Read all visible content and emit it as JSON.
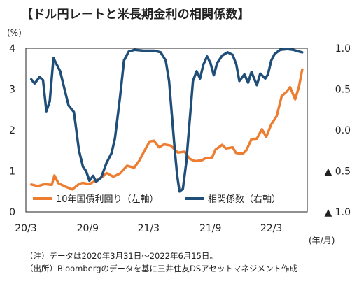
{
  "chart_data": {
    "type": "line",
    "title": "【ドル円レートと米長期金利の相関係数】",
    "left_axis_unit": "(%)",
    "x_axis_unit": "(年/月)",
    "x_ticks": [
      "20/3",
      "20/9",
      "21/3",
      "21/9",
      "22/3"
    ],
    "y_left": {
      "min": 0,
      "max": 4,
      "ticks": [
        "0",
        "1",
        "2",
        "3",
        "4"
      ]
    },
    "y_right": {
      "min": -1.0,
      "max": 1.0,
      "ticks": [
        "▲ 1.0",
        "▲ 0.5",
        "0.0",
        "0.5",
        "1.0"
      ]
    },
    "grid": false,
    "legend_position": "bottom",
    "series": [
      {
        "name": "10年国債利回り（左軸）",
        "axis": "left",
        "color": "#ED7D31",
        "points": [
          [
            "2020-03-31",
            0.67
          ],
          [
            "2020-04-20",
            0.63
          ],
          [
            "2020-05-10",
            0.68
          ],
          [
            "2020-05-31",
            0.66
          ],
          [
            "2020-06-08",
            0.89
          ],
          [
            "2020-06-20",
            0.7
          ],
          [
            "2020-07-10",
            0.62
          ],
          [
            "2020-07-31",
            0.55
          ],
          [
            "2020-08-20",
            0.68
          ],
          [
            "2020-08-31",
            0.71
          ],
          [
            "2020-09-20",
            0.68
          ],
          [
            "2020-10-10",
            0.77
          ],
          [
            "2020-10-31",
            0.87
          ],
          [
            "2020-11-10",
            0.95
          ],
          [
            "2020-11-30",
            0.86
          ],
          [
            "2020-12-20",
            0.94
          ],
          [
            "2021-01-10",
            1.13
          ],
          [
            "2021-01-31",
            1.08
          ],
          [
            "2021-02-15",
            1.25
          ],
          [
            "2021-02-28",
            1.45
          ],
          [
            "2021-03-18",
            1.72
          ],
          [
            "2021-03-31",
            1.74
          ],
          [
            "2021-04-15",
            1.58
          ],
          [
            "2021-04-30",
            1.65
          ],
          [
            "2021-05-20",
            1.62
          ],
          [
            "2021-06-10",
            1.45
          ],
          [
            "2021-06-30",
            1.47
          ],
          [
            "2021-07-15",
            1.3
          ],
          [
            "2021-07-31",
            1.24
          ],
          [
            "2021-08-20",
            1.26
          ],
          [
            "2021-08-31",
            1.31
          ],
          [
            "2021-09-20",
            1.33
          ],
          [
            "2021-09-30",
            1.52
          ],
          [
            "2021-10-20",
            1.64
          ],
          [
            "2021-10-31",
            1.55
          ],
          [
            "2021-11-20",
            1.58
          ],
          [
            "2021-11-30",
            1.44
          ],
          [
            "2021-12-20",
            1.42
          ],
          [
            "2021-12-31",
            1.51
          ],
          [
            "2022-01-15",
            1.78
          ],
          [
            "2022-01-31",
            1.79
          ],
          [
            "2022-02-15",
            2.02
          ],
          [
            "2022-02-28",
            1.83
          ],
          [
            "2022-03-15",
            2.14
          ],
          [
            "2022-03-31",
            2.34
          ],
          [
            "2022-04-15",
            2.83
          ],
          [
            "2022-04-30",
            2.94
          ],
          [
            "2022-05-10",
            3.05
          ],
          [
            "2022-05-25",
            2.75
          ],
          [
            "2022-06-05",
            3.05
          ],
          [
            "2022-06-15",
            3.48
          ]
        ]
      },
      {
        "name": "相関係数（右軸）",
        "axis": "right",
        "color": "#1F4E79",
        "points": [
          [
            "2020-03-31",
            0.62
          ],
          [
            "2020-04-10",
            0.57
          ],
          [
            "2020-04-25",
            0.65
          ],
          [
            "2020-05-05",
            0.61
          ],
          [
            "2020-05-15",
            0.23
          ],
          [
            "2020-05-25",
            0.35
          ],
          [
            "2020-06-05",
            0.88
          ],
          [
            "2020-06-15",
            0.8
          ],
          [
            "2020-06-25",
            0.72
          ],
          [
            "2020-07-05",
            0.55
          ],
          [
            "2020-07-20",
            0.3
          ],
          [
            "2020-08-05",
            0.22
          ],
          [
            "2020-08-20",
            -0.25
          ],
          [
            "2020-09-01",
            -0.45
          ],
          [
            "2020-09-10",
            -0.5
          ],
          [
            "2020-09-20",
            -0.62
          ],
          [
            "2020-10-01",
            -0.56
          ],
          [
            "2020-10-10",
            -0.63
          ],
          [
            "2020-10-25",
            -0.58
          ],
          [
            "2020-11-10",
            -0.4
          ],
          [
            "2020-11-25",
            -0.28
          ],
          [
            "2020-12-05",
            -0.1
          ],
          [
            "2020-12-20",
            0.4
          ],
          [
            "2021-01-01",
            0.85
          ],
          [
            "2021-01-15",
            0.96
          ],
          [
            "2021-02-01",
            0.98
          ],
          [
            "2021-03-01",
            0.97
          ],
          [
            "2021-04-01",
            0.97
          ],
          [
            "2021-04-20",
            0.95
          ],
          [
            "2021-05-05",
            0.85
          ],
          [
            "2021-05-15",
            0.6
          ],
          [
            "2021-05-25",
            0.1
          ],
          [
            "2021-06-01",
            -0.25
          ],
          [
            "2021-06-08",
            -0.55
          ],
          [
            "2021-06-15",
            -0.75
          ],
          [
            "2021-06-25",
            -0.72
          ],
          [
            "2021-07-05",
            -0.4
          ],
          [
            "2021-07-15",
            0.1
          ],
          [
            "2021-07-25",
            0.6
          ],
          [
            "2021-08-05",
            0.72
          ],
          [
            "2021-08-15",
            0.63
          ],
          [
            "2021-08-25",
            0.8
          ],
          [
            "2021-09-05",
            0.9
          ],
          [
            "2021-09-15",
            0.82
          ],
          [
            "2021-09-25",
            0.67
          ],
          [
            "2021-10-05",
            0.82
          ],
          [
            "2021-10-20",
            0.91
          ],
          [
            "2021-11-05",
            0.95
          ],
          [
            "2021-11-20",
            0.92
          ],
          [
            "2021-12-01",
            0.8
          ],
          [
            "2021-12-10",
            0.6
          ],
          [
            "2021-12-25",
            0.68
          ],
          [
            "2022-01-05",
            0.58
          ],
          [
            "2022-01-15",
            0.71
          ],
          [
            "2022-01-31",
            0.55
          ],
          [
            "2022-02-10",
            0.69
          ],
          [
            "2022-02-25",
            0.63
          ],
          [
            "2022-03-05",
            0.68
          ],
          [
            "2022-03-15",
            0.85
          ],
          [
            "2022-03-25",
            0.93
          ],
          [
            "2022-04-10",
            0.98
          ],
          [
            "2022-05-01",
            0.99
          ],
          [
            "2022-05-20",
            0.98
          ],
          [
            "2022-06-05",
            0.96
          ],
          [
            "2022-06-15",
            0.95
          ]
        ]
      }
    ]
  },
  "notes": {
    "line1": "（注）データは2020年3月31日～2022年6月15日。",
    "line2": "（出所）Bloombergのデータを基に三井住友DSアセットマネジメント作成"
  }
}
